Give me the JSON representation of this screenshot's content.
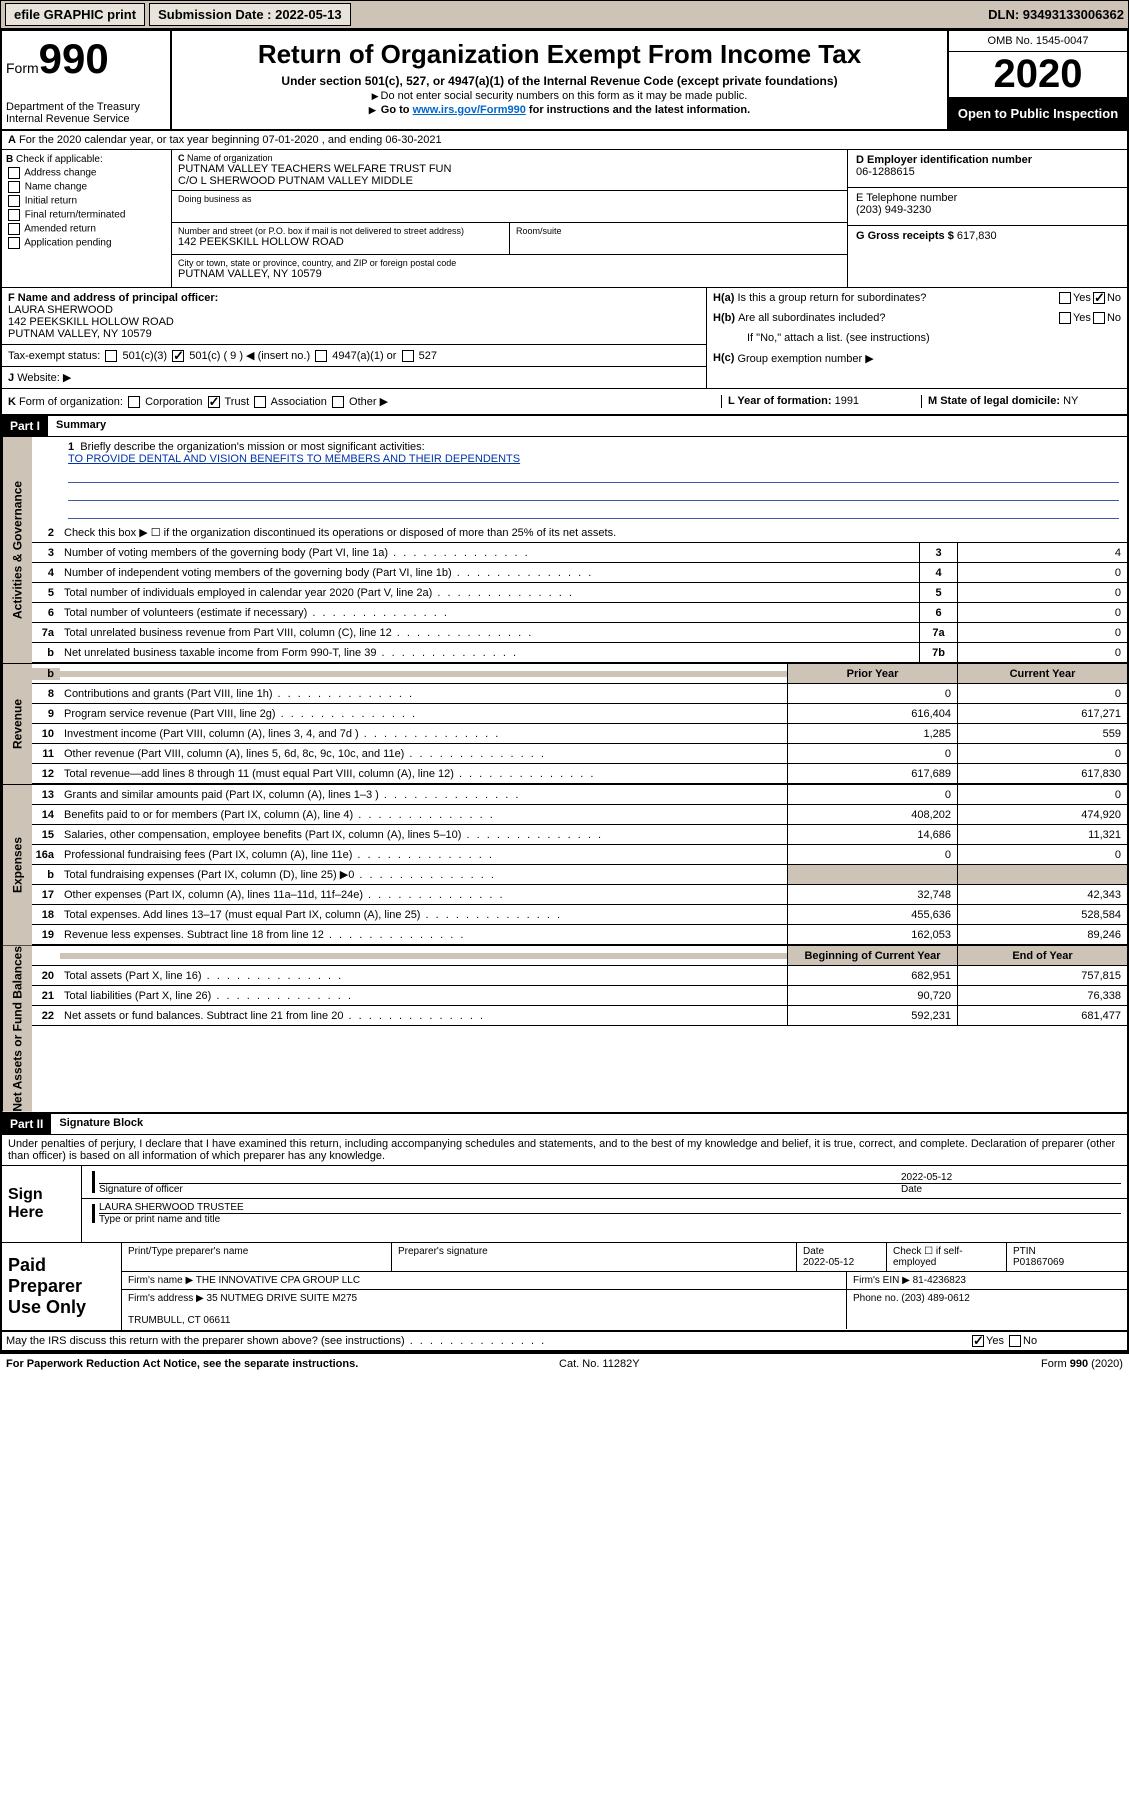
{
  "topbar": {
    "efile": "efile GRAPHIC print",
    "sub_label": "Submission Date : 2022-05-13",
    "dln": "DLN: 93493133006362"
  },
  "header": {
    "form_prefix": "Form",
    "form_number": "990",
    "dept": "Department of the Treasury\nInternal Revenue Service",
    "title": "Return of Organization Exempt From Income Tax",
    "subtitle": "Under section 501(c), 527, or 4947(a)(1) of the Internal Revenue Code (except private foundations)",
    "note1": "Do not enter social security numbers on this form as it may be made public.",
    "note2_pre": "Go to ",
    "note2_link": "www.irs.gov/Form990",
    "note2_post": " for instructions and the latest information.",
    "omb": "OMB No. 1545-0047",
    "year": "2020",
    "inspect": "Open to Public Inspection"
  },
  "lineA": "For the 2020 calendar year, or tax year beginning 07-01-2020   , and ending 06-30-2021",
  "boxB": {
    "label": "Check if applicable:",
    "items": [
      "Address change",
      "Name change",
      "Initial return",
      "Final return/terminated",
      "Amended return",
      "Application pending"
    ]
  },
  "boxC": {
    "name_lbl": "Name of organization",
    "name": "PUTNAM VALLEY TEACHERS WELFARE TRUST FUN\nC/O L SHERWOOD PUTNAM VALLEY MIDDLE",
    "dba_lbl": "Doing business as",
    "dba": "",
    "street_lbl": "Number and street (or P.O. box if mail is not delivered to street address)",
    "street": "142 PEEKSKILL HOLLOW ROAD",
    "room_lbl": "Room/suite",
    "city_lbl": "City or town, state or province, country, and ZIP or foreign postal code",
    "city": "PUTNAM VALLEY, NY  10579"
  },
  "boxD": {
    "lbl": "D Employer identification number",
    "val": "06-1288615"
  },
  "boxE": {
    "lbl": "E Telephone number",
    "val": "(203) 949-3230"
  },
  "boxG": {
    "lbl": "G Gross receipts $",
    "val": "617,830"
  },
  "boxF": {
    "lbl": "F  Name and address of principal officer:",
    "val": "LAURA SHERWOOD\n142 PEEKSKILL HOLLOW ROAD\nPUTNAM VALLEY, NY  10579"
  },
  "boxH": {
    "a": "Is this a group return for subordinates?",
    "b": "Are all subordinates included?",
    "note": "If \"No,\" attach a list. (see instructions)",
    "c": "Group exemption number ▶"
  },
  "taxexempt": {
    "lbl": "Tax-exempt status:",
    "c3": "501(c)(3)",
    "c": "501(c) ( 9 ) ◀ (insert no.)",
    "a1": "4947(a)(1) or",
    "s527": "527"
  },
  "boxJ": {
    "lbl": "Website: ▶"
  },
  "boxK": {
    "lbl": "Form of organization:",
    "opts": [
      "Corporation",
      "Trust",
      "Association",
      "Other ▶"
    ]
  },
  "boxL": {
    "lbl": "L Year of formation:",
    "val": "1991"
  },
  "boxM": {
    "lbl": "M State of legal domicile:",
    "val": "NY"
  },
  "part1": {
    "hdr": "Part I",
    "title": "Summary",
    "line1_lbl": "Briefly describe the organization's mission or most significant activities:",
    "mission": "TO PROVIDE DENTAL AND VISION BENEFITS TO MEMBERS AND THEIR DEPENDENTS",
    "line2": "Check this box ▶ ☐  if the organization discontinued its operations or disposed of more than 25% of its net assets.",
    "rows_gov": [
      {
        "n": "3",
        "t": "Number of voting members of the governing body (Part VI, line 1a)",
        "b": "3",
        "v": "4"
      },
      {
        "n": "4",
        "t": "Number of independent voting members of the governing body (Part VI, line 1b)",
        "b": "4",
        "v": "0"
      },
      {
        "n": "5",
        "t": "Total number of individuals employed in calendar year 2020 (Part V, line 2a)",
        "b": "5",
        "v": "0"
      },
      {
        "n": "6",
        "t": "Total number of volunteers (estimate if necessary)",
        "b": "6",
        "v": "0"
      },
      {
        "n": "7a",
        "t": "Total unrelated business revenue from Part VIII, column (C), line 12",
        "b": "7a",
        "v": "0"
      },
      {
        "n": "b",
        "t": "Net unrelated business taxable income from Form 990-T, line 39",
        "b": "7b",
        "v": "0"
      }
    ],
    "col_hdr": {
      "prior": "Prior Year",
      "current": "Current Year"
    },
    "rows_rev": [
      {
        "n": "8",
        "t": "Contributions and grants (Part VIII, line 1h)",
        "p": "0",
        "c": "0"
      },
      {
        "n": "9",
        "t": "Program service revenue (Part VIII, line 2g)",
        "p": "616,404",
        "c": "617,271"
      },
      {
        "n": "10",
        "t": "Investment income (Part VIII, column (A), lines 3, 4, and 7d )",
        "p": "1,285",
        "c": "559"
      },
      {
        "n": "11",
        "t": "Other revenue (Part VIII, column (A), lines 5, 6d, 8c, 9c, 10c, and 11e)",
        "p": "0",
        "c": "0"
      },
      {
        "n": "12",
        "t": "Total revenue—add lines 8 through 11 (must equal Part VIII, column (A), line 12)",
        "p": "617,689",
        "c": "617,830"
      }
    ],
    "rows_exp": [
      {
        "n": "13",
        "t": "Grants and similar amounts paid (Part IX, column (A), lines 1–3 )",
        "p": "0",
        "c": "0"
      },
      {
        "n": "14",
        "t": "Benefits paid to or for members (Part IX, column (A), line 4)",
        "p": "408,202",
        "c": "474,920"
      },
      {
        "n": "15",
        "t": "Salaries, other compensation, employee benefits (Part IX, column (A), lines 5–10)",
        "p": "14,686",
        "c": "11,321"
      },
      {
        "n": "16a",
        "t": "Professional fundraising fees (Part IX, column (A), line 11e)",
        "p": "0",
        "c": "0"
      },
      {
        "n": "b",
        "t": "Total fundraising expenses (Part IX, column (D), line 25) ▶0",
        "p": "",
        "c": "",
        "grey": true
      },
      {
        "n": "17",
        "t": "Other expenses (Part IX, column (A), lines 11a–11d, 11f–24e)",
        "p": "32,748",
        "c": "42,343"
      },
      {
        "n": "18",
        "t": "Total expenses. Add lines 13–17 (must equal Part IX, column (A), line 25)",
        "p": "455,636",
        "c": "528,584"
      },
      {
        "n": "19",
        "t": "Revenue less expenses. Subtract line 18 from line 12",
        "p": "162,053",
        "c": "89,246"
      }
    ],
    "col_hdr2": {
      "prior": "Beginning of Current Year",
      "current": "End of Year"
    },
    "rows_net": [
      {
        "n": "20",
        "t": "Total assets (Part X, line 16)",
        "p": "682,951",
        "c": "757,815"
      },
      {
        "n": "21",
        "t": "Total liabilities (Part X, line 26)",
        "p": "90,720",
        "c": "76,338"
      },
      {
        "n": "22",
        "t": "Net assets or fund balances. Subtract line 21 from line 20",
        "p": "592,231",
        "c": "681,477"
      }
    ],
    "vtabs": {
      "gov": "Activities & Governance",
      "rev": "Revenue",
      "exp": "Expenses",
      "net": "Net Assets or Fund Balances"
    }
  },
  "part2": {
    "hdr": "Part II",
    "title": "Signature Block",
    "decl": "Under penalties of perjury, I declare that I have examined this return, including accompanying schedules and statements, and to the best of my knowledge and belief, it is true, correct, and complete. Declaration of preparer (other than officer) is based on all information of which preparer has any knowledge."
  },
  "sign": {
    "left": "Sign Here",
    "sig_lbl": "Signature of officer",
    "date": "2022-05-12",
    "date_lbl": "Date",
    "name": "LAURA SHERWOOD TRUSTEE",
    "name_lbl": "Type or print name and title"
  },
  "prep": {
    "left": "Paid Preparer Use Only",
    "h": {
      "c1": "Print/Type preparer's name",
      "c2": "Preparer's signature",
      "c3": "Date",
      "c4": "Check ☐ if self-employed",
      "c5": "PTIN"
    },
    "date": "2022-05-12",
    "ptin": "P01867069",
    "firm_lbl": "Firm's name    ▶",
    "firm": "THE INNOVATIVE CPA GROUP LLC",
    "ein_lbl": "Firm's EIN ▶",
    "ein": "81-4236823",
    "addr_lbl": "Firm's address ▶",
    "addr": "35 NUTMEG DRIVE SUITE M275\n\nTRUMBULL, CT  06611",
    "phone_lbl": "Phone no.",
    "phone": "(203) 489-0612"
  },
  "discuss": "May the IRS discuss this return with the preparer shown above? (see instructions)",
  "footer": {
    "left": "For Paperwork Reduction Act Notice, see the separate instructions.",
    "mid": "Cat. No. 11282Y",
    "right": "Form 990 (2020)"
  }
}
